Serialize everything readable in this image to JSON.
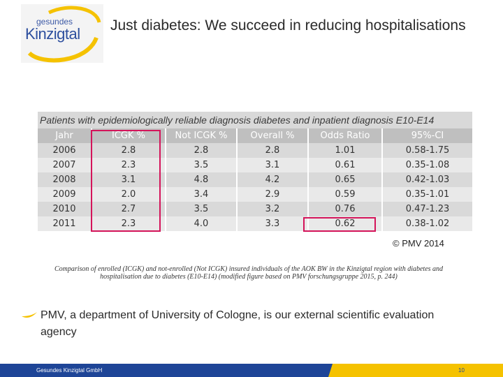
{
  "logo": {
    "line1": "gesundes",
    "line2": "Kinzigtal"
  },
  "title": "Just diabetes: We succeed in reducing hospitalisations",
  "table": {
    "caption": "Patients with epidemiologically reliable diagnosis diabetes and inpatient diagnosis E10-E14",
    "headers": [
      "Jahr",
      "ICGK %",
      "Not ICGK %",
      "Overall %",
      "Odds Ratio",
      "95%-CI"
    ],
    "rows": [
      [
        "2006",
        "2.8",
        "2.8",
        "2.8",
        "1.01",
        "0.58-1.75"
      ],
      [
        "2007",
        "2.3",
        "3.5",
        "3.1",
        "0.61",
        "0.35-1.08"
      ],
      [
        "2008",
        "3.1",
        "4.8",
        "4.2",
        "0.65",
        "0.42-1.03"
      ],
      [
        "2009",
        "2.0",
        "3.4",
        "2.9",
        "0.59",
        "0.35-1.01"
      ],
      [
        "2010",
        "2.7",
        "3.5",
        "3.2",
        "0.76",
        "0.47-1.23"
      ],
      [
        "2011",
        "2.3",
        "4.0",
        "3.3",
        "0.62",
        "0.38-1.02"
      ]
    ],
    "copyright": "© PMV 2014"
  },
  "figure_caption": "Comparison of enrolled (ICGK) and not-enrolled (Not ICGK) insured individuals of the AOK BW in the Kinzigtal region with diabetes and hospitalisation due to diabetes (E10-E14) (modified figure based on PMV forschungsgruppe 2015, p. 244)",
  "bullet": "PMV, a department of University of Cologne, is our external scientific evaluation agency",
  "footer": {
    "company": "Gesundes Kinzigtal GmbH",
    "page": "10"
  },
  "colors": {
    "accent": "#d4145a",
    "brand_blue": "#1e4597",
    "brand_yellow": "#f5c200"
  }
}
